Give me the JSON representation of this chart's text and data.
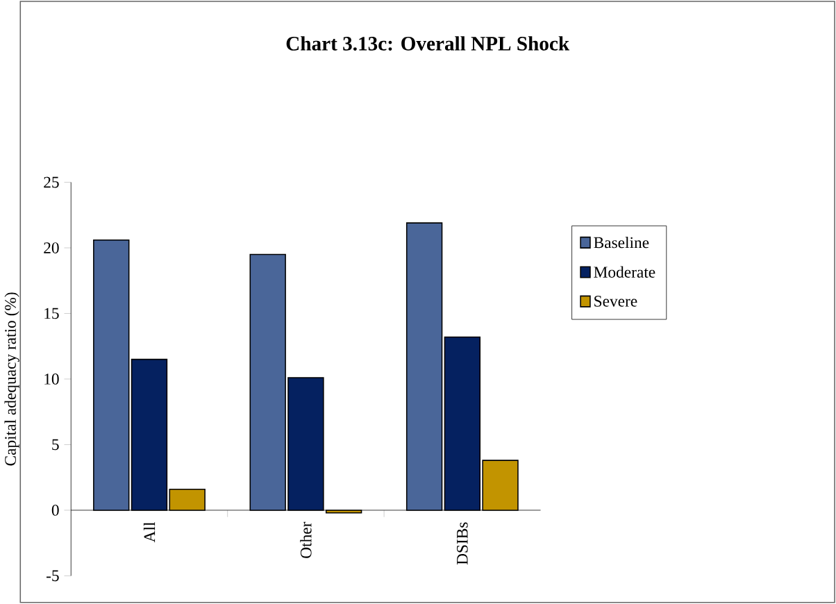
{
  "chart_data": {
    "type": "bar",
    "title": "Chart 3.13c: Overall NPL Shock",
    "ylabel": "Capital adequacy ratio (%)",
    "categories": [
      "All",
      "Other",
      "DSIBs"
    ],
    "series": [
      {
        "name": "Baseline",
        "color": "#4a6699",
        "values": [
          20.6,
          19.5,
          21.9
        ]
      },
      {
        "name": "Moderate",
        "color": "#052160",
        "values": [
          11.5,
          10.1,
          13.2
        ]
      },
      {
        "name": "Severe",
        "color": "#c29400",
        "values": [
          1.6,
          -0.2,
          3.8
        ]
      }
    ],
    "ylim": [
      -5,
      25
    ],
    "yticks": [
      -5,
      0,
      5,
      10,
      15,
      20,
      25
    ],
    "grid": false,
    "legend": "right"
  }
}
